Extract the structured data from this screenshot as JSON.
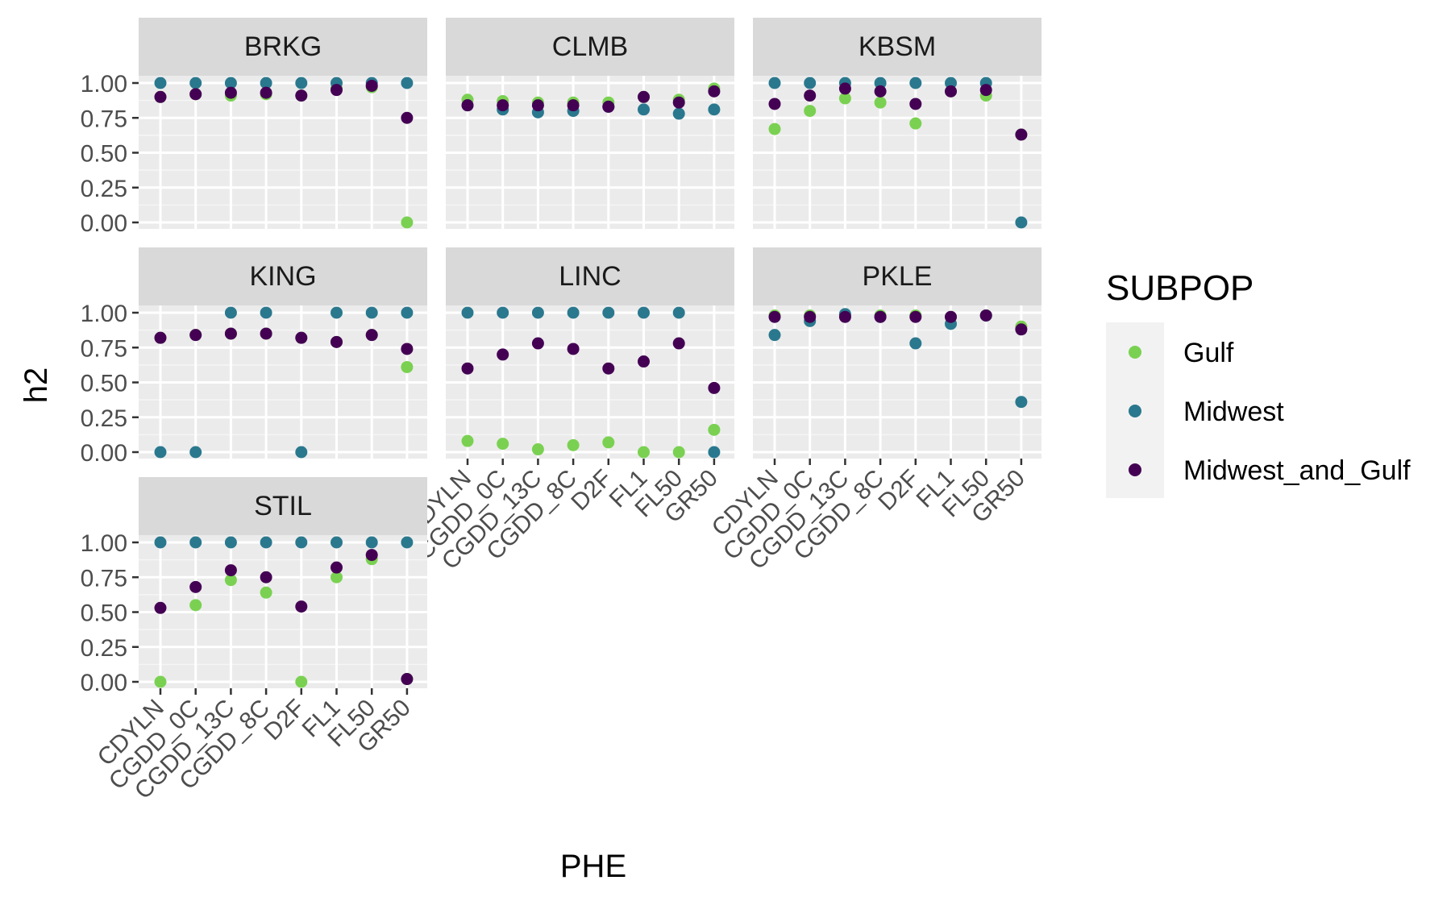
{
  "chart_data": {
    "type": "scatter",
    "xlabel": "PHE",
    "ylabel": "h2",
    "ylim": [
      0,
      1
    ],
    "y_ticks": [
      "0.00",
      "0.25",
      "0.50",
      "0.75",
      "1.00"
    ],
    "categories": [
      "CDYLN",
      "CGDD_0C",
      "CGDD_13C",
      "CGDD_8C",
      "D2F",
      "FL1",
      "FL50",
      "GR50"
    ],
    "grid": true,
    "legend": {
      "title": "SUBPOP",
      "placement": "right",
      "entries": [
        "Gulf",
        "Midwest",
        "Midwest_and_Gulf"
      ]
    },
    "colors": {
      "Gulf": "#7ad151",
      "Midwest": "#2a788e",
      "Midwest_and_Gulf": "#440154"
    },
    "panels": [
      {
        "name": "BRKG",
        "series": [
          {
            "name": "Gulf",
            "values": [
              0.9,
              0.92,
              0.91,
              0.92,
              0.91,
              0.96,
              0.97,
              0.0
            ]
          },
          {
            "name": "Midwest",
            "values": [
              1.0,
              1.0,
              1.0,
              1.0,
              1.0,
              1.0,
              1.0,
              1.0
            ]
          },
          {
            "name": "Midwest_and_Gulf",
            "values": [
              0.9,
              0.92,
              0.93,
              0.93,
              0.91,
              0.95,
              0.98,
              0.75
            ]
          }
        ]
      },
      {
        "name": "CLMB",
        "series": [
          {
            "name": "Gulf",
            "values": [
              0.88,
              0.87,
              0.86,
              0.86,
              0.86,
              0.9,
              0.88,
              0.96
            ]
          },
          {
            "name": "Midwest",
            "values": [
              0.84,
              0.81,
              0.79,
              0.8,
              0.83,
              0.81,
              0.78,
              0.81
            ]
          },
          {
            "name": "Midwest_and_Gulf",
            "values": [
              0.84,
              0.84,
              0.84,
              0.84,
              0.83,
              0.9,
              0.86,
              0.94
            ]
          }
        ]
      },
      {
        "name": "KBSM",
        "series": [
          {
            "name": "Gulf",
            "values": [
              0.67,
              0.8,
              0.89,
              0.86,
              0.71,
              0.94,
              0.91,
              0.63
            ]
          },
          {
            "name": "Midwest",
            "values": [
              1.0,
              1.0,
              1.0,
              1.0,
              1.0,
              1.0,
              1.0,
              0.0
            ]
          },
          {
            "name": "Midwest_and_Gulf",
            "values": [
              0.85,
              0.91,
              0.96,
              0.94,
              0.85,
              0.94,
              0.95,
              0.63
            ]
          }
        ]
      },
      {
        "name": "KING",
        "series": [
          {
            "name": "Gulf",
            "values": [
              0.82,
              0.84,
              0.85,
              0.85,
              0.82,
              0.79,
              0.84,
              0.61
            ]
          },
          {
            "name": "Midwest",
            "values": [
              0.0,
              0.0,
              1.0,
              1.0,
              0.0,
              1.0,
              1.0,
              1.0
            ]
          },
          {
            "name": "Midwest_and_Gulf",
            "values": [
              0.82,
              0.84,
              0.85,
              0.85,
              0.82,
              0.79,
              0.84,
              0.74
            ]
          }
        ]
      },
      {
        "name": "LINC",
        "series": [
          {
            "name": "Gulf",
            "values": [
              0.08,
              0.06,
              0.02,
              0.05,
              0.07,
              0.0,
              0.0,
              0.16
            ]
          },
          {
            "name": "Midwest",
            "values": [
              1.0,
              1.0,
              1.0,
              1.0,
              1.0,
              1.0,
              1.0,
              0.0
            ]
          },
          {
            "name": "Midwest_and_Gulf",
            "values": [
              0.6,
              0.7,
              0.78,
              0.74,
              0.6,
              0.65,
              0.78,
              0.46
            ]
          }
        ]
      },
      {
        "name": "PKLE",
        "series": [
          {
            "name": "Gulf",
            "values": [
              0.98,
              0.98,
              0.98,
              0.98,
              0.98,
              0.97,
              0.98,
              0.9
            ]
          },
          {
            "name": "Midwest",
            "values": [
              0.84,
              0.94,
              0.99,
              0.97,
              0.78,
              0.92,
              0.98,
              0.36
            ]
          },
          {
            "name": "Midwest_and_Gulf",
            "values": [
              0.97,
              0.97,
              0.97,
              0.97,
              0.97,
              0.97,
              0.98,
              0.88
            ]
          }
        ]
      },
      {
        "name": "STIL",
        "series": [
          {
            "name": "Gulf",
            "values": [
              0.0,
              0.55,
              0.73,
              0.64,
              0.0,
              0.75,
              0.88,
              0.02
            ]
          },
          {
            "name": "Midwest",
            "values": [
              1.0,
              1.0,
              1.0,
              1.0,
              1.0,
              1.0,
              1.0,
              1.0
            ]
          },
          {
            "name": "Midwest_and_Gulf",
            "values": [
              0.53,
              0.68,
              0.8,
              0.75,
              0.54,
              0.82,
              0.91,
              0.02
            ]
          }
        ]
      }
    ]
  }
}
